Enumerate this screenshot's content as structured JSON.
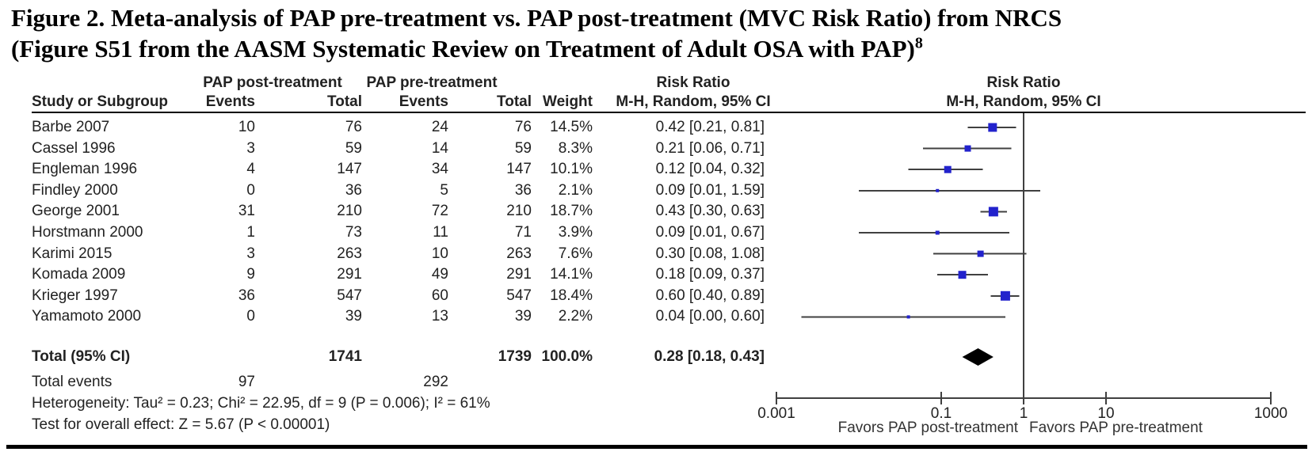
{
  "figure": {
    "title_line1": "Figure 2. Meta-analysis of PAP pre-treatment vs. PAP post-treatment (MVC Risk Ratio) from NRCS",
    "title_line2": "(Figure S51 from the AASM Systematic Review on Treatment of Adult OSA with PAP)",
    "title_superscript": "8"
  },
  "table": {
    "group_headers": {
      "post": "PAP post-treatment",
      "pre": "PAP pre-treatment",
      "rr_text_col": "Risk Ratio",
      "rr_plot_col": "Risk Ratio"
    },
    "col_headers": {
      "study": "Study or Subgroup",
      "events_post": "Events",
      "total_post": "Total",
      "events_pre": "Events",
      "total_pre": "Total",
      "weight": "Weight",
      "mh_text_col": "M-H, Random, 95% CI",
      "mh_plot_col": "M-H, Random, 95% CI"
    }
  },
  "chart_data": {
    "type": "forest",
    "description": "Meta-analysis forest plot (RevMan style), Mantel-Haenszel random effects risk ratios on log10 x-axis",
    "x_scale": "log10",
    "xlim": [
      0.001,
      1000
    ],
    "null_line": 1,
    "axis_ticks": [
      0.001,
      0.1,
      1,
      10,
      1000
    ],
    "axis_tick_labels": [
      "0.001",
      "0.1",
      "1",
      "10",
      "1000"
    ],
    "favors_left": "Favors PAP post-treatment",
    "favors_right": "Favors PAP pre-treatment",
    "studies": [
      {
        "name": "Barbe 2007",
        "events_post": 10,
        "total_post": 76,
        "events_pre": 24,
        "total_pre": 76,
        "weight": "14.5%",
        "weight_value": 14.5,
        "rr_label": "0.42 [0.21, 0.81]",
        "rr": 0.42,
        "ci_low": 0.21,
        "ci_high": 0.81
      },
      {
        "name": "Cassel 1996",
        "events_post": 3,
        "total_post": 59,
        "events_pre": 14,
        "total_pre": 59,
        "weight": "8.3%",
        "weight_value": 8.3,
        "rr_label": "0.21 [0.06, 0.71]",
        "rr": 0.21,
        "ci_low": 0.06,
        "ci_high": 0.71
      },
      {
        "name": "Engleman 1996",
        "events_post": 4,
        "total_post": 147,
        "events_pre": 34,
        "total_pre": 147,
        "weight": "10.1%",
        "weight_value": 10.1,
        "rr_label": "0.12 [0.04, 0.32]",
        "rr": 0.12,
        "ci_low": 0.04,
        "ci_high": 0.32
      },
      {
        "name": "Findley 2000",
        "events_post": 0,
        "total_post": 36,
        "events_pre": 5,
        "total_pre": 36,
        "weight": "2.1%",
        "weight_value": 2.1,
        "rr_label": "0.09 [0.01, 1.59]",
        "rr": 0.09,
        "ci_low": 0.01,
        "ci_high": 1.59
      },
      {
        "name": "George 2001",
        "events_post": 31,
        "total_post": 210,
        "events_pre": 72,
        "total_pre": 210,
        "weight": "18.7%",
        "weight_value": 18.7,
        "rr_label": "0.43 [0.30, 0.63]",
        "rr": 0.43,
        "ci_low": 0.3,
        "ci_high": 0.63
      },
      {
        "name": "Horstmann 2000",
        "events_post": 1,
        "total_post": 73,
        "events_pre": 11,
        "total_pre": 71,
        "weight": "3.9%",
        "weight_value": 3.9,
        "rr_label": "0.09 [0.01, 0.67]",
        "rr": 0.09,
        "ci_low": 0.01,
        "ci_high": 0.67
      },
      {
        "name": "Karimi 2015",
        "events_post": 3,
        "total_post": 263,
        "events_pre": 10,
        "total_pre": 263,
        "weight": "7.6%",
        "weight_value": 7.6,
        "rr_label": "0.30 [0.08, 1.08]",
        "rr": 0.3,
        "ci_low": 0.08,
        "ci_high": 1.08
      },
      {
        "name": "Komada 2009",
        "events_post": 9,
        "total_post": 291,
        "events_pre": 49,
        "total_pre": 291,
        "weight": "14.1%",
        "weight_value": 14.1,
        "rr_label": "0.18 [0.09, 0.37]",
        "rr": 0.18,
        "ci_low": 0.09,
        "ci_high": 0.37
      },
      {
        "name": "Krieger 1997",
        "events_post": 36,
        "total_post": 547,
        "events_pre": 60,
        "total_pre": 547,
        "weight": "18.4%",
        "weight_value": 18.4,
        "rr_label": "0.60 [0.40, 0.89]",
        "rr": 0.6,
        "ci_low": 0.4,
        "ci_high": 0.89
      },
      {
        "name": "Yamamoto 2000",
        "events_post": 0,
        "total_post": 39,
        "events_pre": 13,
        "total_pre": 39,
        "weight": "2.2%",
        "weight_value": 2.2,
        "rr_label": "0.04 [0.00, 0.60]",
        "rr": 0.04,
        "ci_low": 0.0,
        "ci_high": 0.6
      }
    ],
    "total": {
      "label": "Total (95% CI)",
      "total_post": 1741,
      "total_pre": 1739,
      "weight": "100.0%",
      "rr_label": "0.28 [0.18, 0.43]",
      "rr": 0.28,
      "ci_low": 0.18,
      "ci_high": 0.43
    },
    "total_events": {
      "label": "Total events",
      "post": 97,
      "pre": 292
    },
    "heterogeneity": "Heterogeneity: Tau² = 0.23; Chi² = 22.95, df = 9 (P = 0.006); I² = 61%",
    "overall_effect": "Test for overall effect: Z = 5.67 (P < 0.00001)",
    "colors": {
      "square": "#2222cc",
      "diamond": "#000000",
      "ci_line": "#404040",
      "rule": "#000000"
    }
  }
}
